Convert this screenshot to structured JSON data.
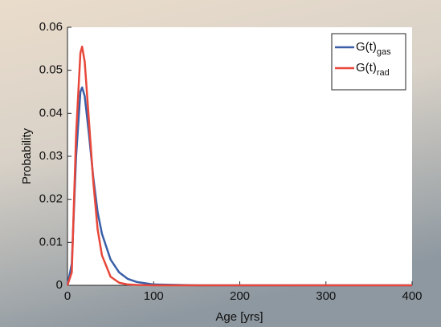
{
  "chart_data": {
    "type": "line",
    "x_label": "Age [yrs]",
    "y_label": "Probability",
    "x": [
      0,
      5,
      10,
      15,
      17,
      20,
      25,
      30,
      35,
      40,
      50,
      60,
      70,
      80,
      100,
      150,
      200,
      300,
      400
    ],
    "series": [
      {
        "name": "G(t)",
        "name_subscript": "gas",
        "color": "#3a5fa8",
        "values": [
          0,
          0.005,
          0.03,
          0.045,
          0.046,
          0.044,
          0.035,
          0.025,
          0.017,
          0.012,
          0.006,
          0.003,
          0.0015,
          0.0008,
          0.0002,
          0,
          0,
          0,
          0
        ]
      },
      {
        "name": "G(t)",
        "name_subscript": "rad",
        "color": "#e8473a",
        "values": [
          0,
          0.003,
          0.035,
          0.054,
          0.0555,
          0.052,
          0.038,
          0.024,
          0.013,
          0.007,
          0.002,
          0.0006,
          0.0002,
          0.0001,
          0,
          0,
          0,
          0,
          0
        ]
      }
    ],
    "xlim": [
      0,
      400
    ],
    "xticks": [
      0,
      100,
      200,
      300,
      400
    ],
    "ylim": [
      0,
      0.06
    ],
    "yticks": [
      0,
      0.01,
      0.02,
      0.03,
      0.04,
      0.05,
      0.06
    ],
    "legend": "upper right",
    "grid": false
  }
}
